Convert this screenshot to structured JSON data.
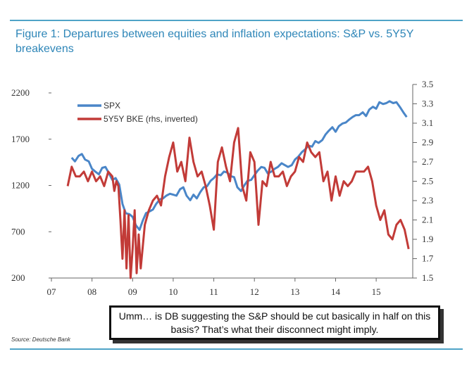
{
  "figure": {
    "title": "Figure 1: Departures between equities and inflation expectations: S&P vs. 5Y5Y breakevens",
    "source": "Source: Deutsche Bank",
    "callout": "Umm… is DB suggesting the S&P should be cut basically in half on this basis? That’s what their disconnect might imply."
  },
  "colors": {
    "spx": "#4a86c8",
    "bke": "#c23b38",
    "title": "#2e86b8",
    "rule": "#4fa3c7"
  },
  "chart_data": {
    "type": "line",
    "title": "Figure 1: Departures between equities and inflation expectations: S&P vs. 5Y5Y breakevens",
    "x_tick_labels": [
      "07",
      "08",
      "09",
      "10",
      "11",
      "12",
      "13",
      "14",
      "15"
    ],
    "x_ticks": [
      2007,
      2008,
      2009,
      2010,
      2011,
      2012,
      2013,
      2014,
      2015
    ],
    "xlim": [
      2007,
      2015.9
    ],
    "y_left": {
      "ticks": [
        200,
        700,
        1200,
        1700,
        2200
      ],
      "lim": [
        200,
        2200
      ]
    },
    "y_right": {
      "ticks": [
        1.5,
        1.7,
        1.9,
        2.1,
        2.3,
        2.5,
        2.7,
        2.9,
        3.1,
        3.3,
        3.5
      ],
      "lim": [
        1.5,
        3.5
      ],
      "inverted": true
    },
    "legend_position": "top-left",
    "grid": false,
    "series": [
      {
        "name": "SPX",
        "axis": "left",
        "x": [
          2007.5,
          2007.58,
          2007.67,
          2007.75,
          2007.83,
          2007.92,
          2008.0,
          2008.08,
          2008.17,
          2008.25,
          2008.33,
          2008.42,
          2008.5,
          2008.58,
          2008.67,
          2008.75,
          2008.83,
          2008.92,
          2009.0,
          2009.08,
          2009.17,
          2009.25,
          2009.33,
          2009.42,
          2009.5,
          2009.58,
          2009.67,
          2009.75,
          2009.83,
          2009.92,
          2010.0,
          2010.08,
          2010.17,
          2010.25,
          2010.33,
          2010.42,
          2010.5,
          2010.58,
          2010.67,
          2010.75,
          2010.83,
          2010.92,
          2011.0,
          2011.08,
          2011.17,
          2011.25,
          2011.33,
          2011.42,
          2011.5,
          2011.58,
          2011.67,
          2011.75,
          2011.83,
          2011.92,
          2012.0,
          2012.08,
          2012.17,
          2012.25,
          2012.33,
          2012.42,
          2012.5,
          2012.58,
          2012.67,
          2012.75,
          2012.83,
          2012.92,
          2013.0,
          2013.08,
          2013.17,
          2013.25,
          2013.33,
          2013.42,
          2013.5,
          2013.58,
          2013.67,
          2013.75,
          2013.83,
          2013.92,
          2014.0,
          2014.08,
          2014.17,
          2014.25,
          2014.33,
          2014.42,
          2014.5,
          2014.58,
          2014.67,
          2014.75,
          2014.83,
          2014.92,
          2015.0,
          2015.08,
          2015.17,
          2015.25,
          2015.33,
          2015.42,
          2015.5,
          2015.58,
          2015.67,
          2015.75
        ],
        "values": [
          1500,
          1460,
          1520,
          1540,
          1480,
          1460,
          1380,
          1350,
          1320,
          1390,
          1400,
          1330,
          1260,
          1280,
          1210,
          1000,
          900,
          890,
          860,
          770,
          720,
          820,
          900,
          920,
          940,
          1000,
          1050,
          1060,
          1090,
          1110,
          1100,
          1090,
          1160,
          1180,
          1090,
          1040,
          1100,
          1060,
          1130,
          1180,
          1190,
          1250,
          1280,
          1320,
          1310,
          1350,
          1340,
          1300,
          1290,
          1180,
          1140,
          1200,
          1250,
          1260,
          1310,
          1360,
          1400,
          1390,
          1330,
          1350,
          1380,
          1400,
          1440,
          1420,
          1400,
          1420,
          1480,
          1510,
          1560,
          1590,
          1630,
          1620,
          1680,
          1660,
          1690,
          1750,
          1790,
          1830,
          1780,
          1840,
          1870,
          1880,
          1910,
          1940,
          1960,
          1960,
          1990,
          1950,
          2020,
          2050,
          2030,
          2100,
          2080,
          2090,
          2110,
          2090,
          2100,
          2050,
          1990,
          1940
        ]
      },
      {
        "name": "5Y5Y BKE (rhs, inverted)",
        "axis": "right",
        "x": [
          2007.4,
          2007.5,
          2007.6,
          2007.7,
          2007.8,
          2007.9,
          2008.0,
          2008.1,
          2008.2,
          2008.3,
          2008.4,
          2008.5,
          2008.55,
          2008.6,
          2008.65,
          2008.7,
          2008.75,
          2008.8,
          2008.85,
          2008.9,
          2008.95,
          2009.0,
          2009.05,
          2009.1,
          2009.15,
          2009.2,
          2009.3,
          2009.4,
          2009.5,
          2009.6,
          2009.7,
          2009.8,
          2009.9,
          2010.0,
          2010.1,
          2010.2,
          2010.3,
          2010.4,
          2010.5,
          2010.6,
          2010.7,
          2010.8,
          2010.9,
          2011.0,
          2011.1,
          2011.2,
          2011.3,
          2011.4,
          2011.5,
          2011.6,
          2011.7,
          2011.8,
          2011.9,
          2012.0,
          2012.1,
          2012.2,
          2012.3,
          2012.4,
          2012.5,
          2012.6,
          2012.7,
          2012.8,
          2012.9,
          2013.0,
          2013.1,
          2013.2,
          2013.3,
          2013.4,
          2013.5,
          2013.6,
          2013.7,
          2013.8,
          2013.9,
          2014.0,
          2014.1,
          2014.2,
          2014.3,
          2014.4,
          2014.5,
          2014.6,
          2014.7,
          2014.8,
          2014.9,
          2015.0,
          2015.1,
          2015.2,
          2015.3,
          2015.4,
          2015.5,
          2015.6,
          2015.7,
          2015.8
        ],
        "values": [
          2.45,
          2.65,
          2.55,
          2.55,
          2.6,
          2.5,
          2.6,
          2.5,
          2.55,
          2.45,
          2.6,
          2.55,
          2.4,
          2.5,
          2.45,
          2.1,
          1.7,
          2.2,
          1.6,
          2.15,
          1.5,
          1.8,
          2.2,
          1.55,
          1.95,
          1.6,
          2.05,
          2.2,
          2.3,
          2.35,
          2.25,
          2.55,
          2.75,
          2.9,
          2.6,
          2.7,
          2.5,
          2.95,
          2.7,
          2.55,
          2.6,
          2.45,
          2.25,
          2.0,
          2.7,
          2.85,
          2.65,
          2.5,
          2.9,
          3.05,
          2.45,
          2.3,
          2.8,
          2.7,
          2.05,
          2.5,
          2.45,
          2.7,
          2.55,
          2.55,
          2.6,
          2.45,
          2.55,
          2.6,
          2.75,
          2.7,
          2.9,
          2.8,
          2.75,
          2.8,
          2.5,
          2.6,
          2.3,
          2.55,
          2.35,
          2.5,
          2.45,
          2.5,
          2.6,
          2.6,
          2.6,
          2.65,
          2.5,
          2.25,
          2.1,
          2.2,
          1.95,
          1.9,
          2.05,
          2.1,
          2.0,
          1.8
        ]
      }
    ]
  }
}
